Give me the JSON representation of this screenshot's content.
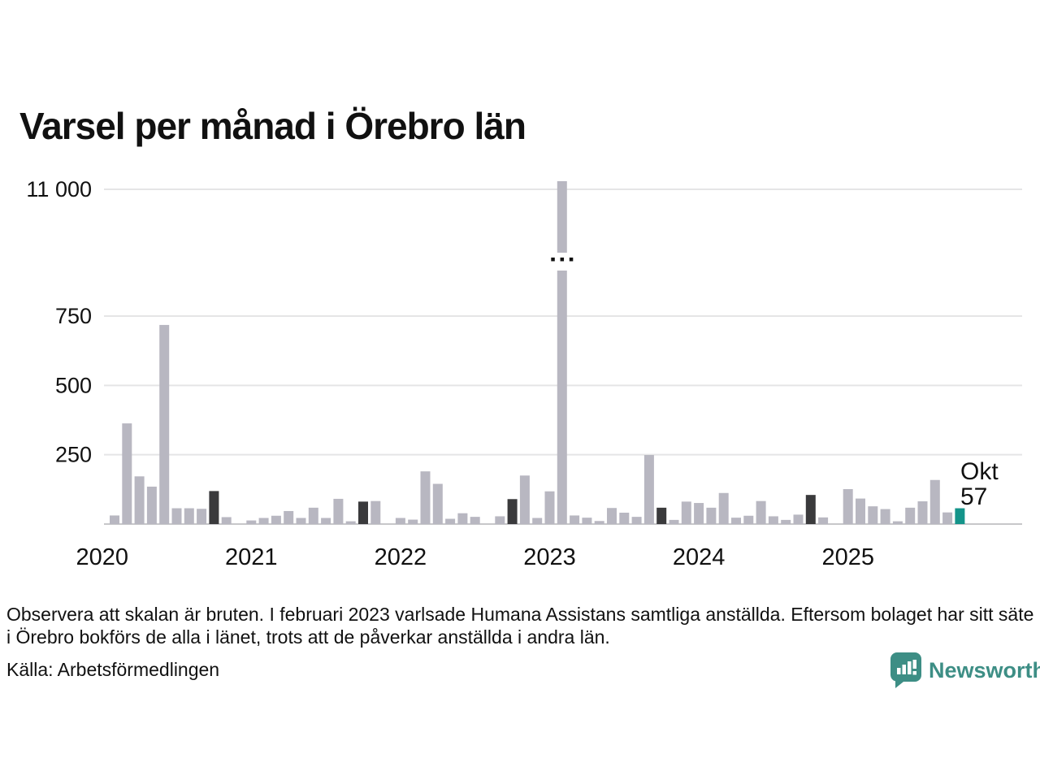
{
  "title": "Varsel per månad i Örebro län",
  "note": "Observera att skalan är bruten. I februari 2023 varlsade Humana Assistans samtliga anställda. Eftersom bolaget har sitt säte i Örebro bokförs de alla i länet, trots att de påverkar anställda i andra län.",
  "source": "Källa: Arbetsförmedlingen",
  "logo": {
    "text": "Newsworthy",
    "color": "#3d8e85"
  },
  "chart_data": {
    "type": "bar",
    "title": "Varsel per månad i Örebro län",
    "xlabel": "",
    "ylabel": "",
    "grid": "horizontal",
    "broken_axis": {
      "enabled": true,
      "break_between": [
        750,
        11000
      ],
      "break_marker_dots": 3
    },
    "y_ticks": [
      {
        "label": "11 000",
        "value": 11000
      },
      {
        "label": "750",
        "value": 750
      },
      {
        "label": "500",
        "value": 500
      },
      {
        "label": "250",
        "value": 250
      }
    ],
    "x_year_labels": [
      "2020",
      "2021",
      "2022",
      "2023",
      "2024",
      "2025"
    ],
    "annotation": {
      "label": "Okt",
      "value": "57"
    },
    "colors": {
      "bar": "#b8b7c1",
      "october_marker": "#3a3a3c",
      "current_month": "#14948a",
      "gridline": "#e5e5e6",
      "baseline": "#c7c7ca",
      "text": "#111111"
    },
    "start_month": "2020-01",
    "end_month": "2025-10",
    "months": [
      {
        "m": "2020-01",
        "v": 0
      },
      {
        "m": "2020-02",
        "v": 31
      },
      {
        "m": "2020-03",
        "v": 363
      },
      {
        "m": "2020-04",
        "v": 172
      },
      {
        "m": "2020-05",
        "v": 135
      },
      {
        "m": "2020-06",
        "v": 718
      },
      {
        "m": "2020-07",
        "v": 57
      },
      {
        "m": "2020-08",
        "v": 57
      },
      {
        "m": "2020-09",
        "v": 55
      },
      {
        "m": "2020-10",
        "v": 119
      },
      {
        "m": "2020-11",
        "v": 25
      },
      {
        "m": "2020-12",
        "v": 0
      },
      {
        "m": "2021-01",
        "v": 13
      },
      {
        "m": "2021-02",
        "v": 22
      },
      {
        "m": "2021-03",
        "v": 30
      },
      {
        "m": "2021-04",
        "v": 47
      },
      {
        "m": "2021-05",
        "v": 22
      },
      {
        "m": "2021-06",
        "v": 59
      },
      {
        "m": "2021-07",
        "v": 22
      },
      {
        "m": "2021-08",
        "v": 91
      },
      {
        "m": "2021-09",
        "v": 10
      },
      {
        "m": "2021-10",
        "v": 81
      },
      {
        "m": "2021-11",
        "v": 83
      },
      {
        "m": "2021-12",
        "v": 0
      },
      {
        "m": "2022-01",
        "v": 22
      },
      {
        "m": "2022-02",
        "v": 16
      },
      {
        "m": "2022-03",
        "v": 190
      },
      {
        "m": "2022-04",
        "v": 145
      },
      {
        "m": "2022-05",
        "v": 19
      },
      {
        "m": "2022-06",
        "v": 39
      },
      {
        "m": "2022-07",
        "v": 26
      },
      {
        "m": "2022-08",
        "v": 0
      },
      {
        "m": "2022-09",
        "v": 28
      },
      {
        "m": "2022-10",
        "v": 90
      },
      {
        "m": "2022-11",
        "v": 175
      },
      {
        "m": "2022-12",
        "v": 22
      },
      {
        "m": "2023-01",
        "v": 118
      },
      {
        "m": "2023-02",
        "v": 11000
      },
      {
        "m": "2023-03",
        "v": 31
      },
      {
        "m": "2023-04",
        "v": 23
      },
      {
        "m": "2023-05",
        "v": 11
      },
      {
        "m": "2023-06",
        "v": 58
      },
      {
        "m": "2023-07",
        "v": 41
      },
      {
        "m": "2023-08",
        "v": 26
      },
      {
        "m": "2023-09",
        "v": 249
      },
      {
        "m": "2023-10",
        "v": 59
      },
      {
        "m": "2023-11",
        "v": 15
      },
      {
        "m": "2023-12",
        "v": 81
      },
      {
        "m": "2024-01",
        "v": 76
      },
      {
        "m": "2024-02",
        "v": 59
      },
      {
        "m": "2024-03",
        "v": 112
      },
      {
        "m": "2024-04",
        "v": 23
      },
      {
        "m": "2024-05",
        "v": 30
      },
      {
        "m": "2024-06",
        "v": 83
      },
      {
        "m": "2024-07",
        "v": 28
      },
      {
        "m": "2024-08",
        "v": 15
      },
      {
        "m": "2024-09",
        "v": 34
      },
      {
        "m": "2024-10",
        "v": 105
      },
      {
        "m": "2024-11",
        "v": 24
      },
      {
        "m": "2024-12",
        "v": 0
      },
      {
        "m": "2025-01",
        "v": 126
      },
      {
        "m": "2025-02",
        "v": 92
      },
      {
        "m": "2025-03",
        "v": 64
      },
      {
        "m": "2025-04",
        "v": 54
      },
      {
        "m": "2025-05",
        "v": 10
      },
      {
        "m": "2025-06",
        "v": 59
      },
      {
        "m": "2025-07",
        "v": 82
      },
      {
        "m": "2025-08",
        "v": 159
      },
      {
        "m": "2025-09",
        "v": 42
      },
      {
        "m": "2025-10",
        "v": 57
      }
    ]
  }
}
